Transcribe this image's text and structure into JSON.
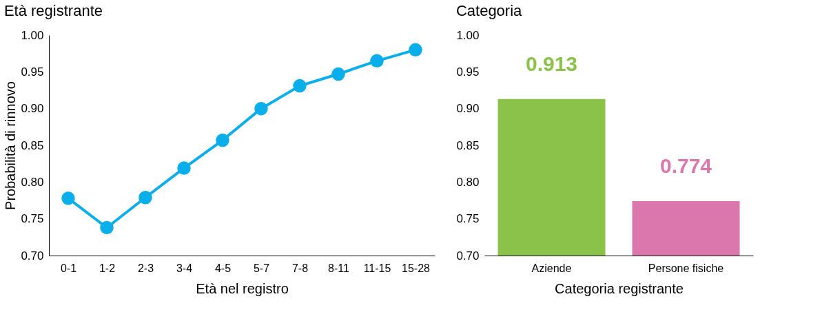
{
  "chart_data": [
    {
      "type": "line",
      "title": "Età registrante",
      "xlabel": "Età nel registro",
      "ylabel": "Probabilità di rinnovo",
      "categories": [
        "0-1",
        "1-2",
        "2-3",
        "3-4",
        "4-5",
        "5-7",
        "7-8",
        "8-11",
        "11-15",
        "15-28"
      ],
      "series": [
        {
          "color": "#0aaeea",
          "values": [
            0.778,
            0.738,
            0.779,
            0.819,
            0.857,
            0.9,
            0.931,
            0.947,
            0.965,
            0.98
          ]
        }
      ],
      "ylim": [
        0.7,
        1.0
      ],
      "yticks": [
        {
          "value": 0.7,
          "label": "0.70"
        },
        {
          "value": 0.75,
          "label": "0.75"
        },
        {
          "value": 0.8,
          "label": "0.80"
        },
        {
          "value": 0.85,
          "label": "0.85"
        },
        {
          "value": 0.9,
          "label": "0.90"
        },
        {
          "value": 0.95,
          "label": "0.95"
        },
        {
          "value": 1.0,
          "label": "1.00"
        }
      ],
      "marker": "circle",
      "line_style": "solid",
      "grid": false
    },
    {
      "type": "bar",
      "title": "Categoria",
      "xlabel": "Categoria registrante",
      "categories": [
        "Aziende",
        "Persone fisiche"
      ],
      "values": [
        0.913,
        0.774
      ],
      "colors": [
        "#8bc34a",
        "#db77ad"
      ],
      "ylim": [
        0.7,
        1.0
      ],
      "yticks": [
        {
          "value": 0.7,
          "label": "0.70"
        },
        {
          "value": 0.75,
          "label": "0.75"
        },
        {
          "value": 0.8,
          "label": "0.80"
        },
        {
          "value": 0.85,
          "label": "0.85"
        },
        {
          "value": 0.9,
          "label": "0.90"
        },
        {
          "value": 0.95,
          "label": "0.95"
        },
        {
          "value": 1.0,
          "label": "1.00"
        }
      ],
      "data_labels": true,
      "grid": false
    }
  ]
}
